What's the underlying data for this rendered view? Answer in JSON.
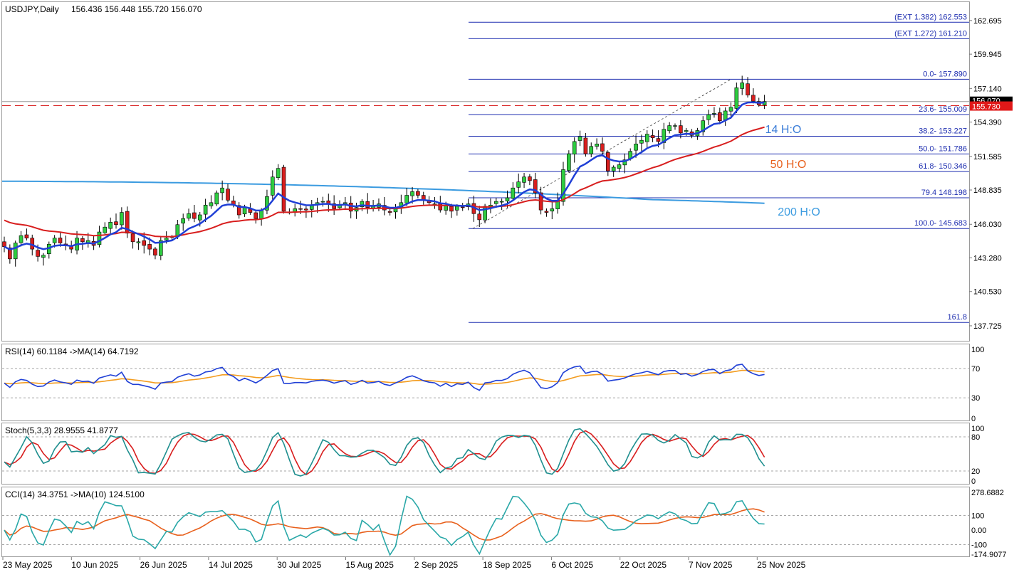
{
  "chart_data": [
    {
      "type": "candlestick",
      "header": {
        "symbol_tf": "USDJPY,Daily",
        "ohlc": "156.436 156.448 155.720 156.070"
      },
      "price_axis": {
        "ticks": [
          "162.695",
          "159.945",
          "157.140",
          "154.390",
          "151.585",
          "148.835",
          "146.030",
          "143.280",
          "140.530",
          "137.725"
        ],
        "ylim": [
          136.5,
          164.2
        ],
        "current_price": "156.070",
        "bid_price": "155.730"
      },
      "x_axis": {
        "labels": [
          "23 May 2025",
          "10 Jun 2025",
          "26 Jun 2025",
          "14 Jul 2025",
          "30 Jul 2025",
          "15 Aug 2025",
          "2 Sep 2025",
          "18 Sep 2025",
          "6 Oct 2025",
          "22 Oct 2025",
          "7 Nov 2025",
          "25 Nov 2025"
        ]
      },
      "fibonacci": [
        {
          "label": "(EXT 1.382)  162.553",
          "price": 162.553
        },
        {
          "label": "(EXT 1.272)  161.210",
          "price": 161.21
        },
        {
          "label": "0.0- 157.890",
          "price": 157.89
        },
        {
          "label": "23.6- 155.009",
          "price": 155.009
        },
        {
          "label": "38.2- 153.227",
          "price": 153.227
        },
        {
          "label": "50.0- 151.786",
          "price": 151.786
        },
        {
          "label": "61.8- 150.346",
          "price": 150.346
        },
        {
          "label": "79.4  148.198",
          "price": 148.198
        },
        {
          "label": "100.0- 145.683",
          "price": 145.683
        },
        {
          "label": "161.8",
          "price": 138.0
        }
      ],
      "ma_labels": [
        {
          "text": "14 H:O",
          "color": "#3b7dd8"
        },
        {
          "text": "50 H:O",
          "color": "#e8601c"
        },
        {
          "text": "200 H:O",
          "color": "#3b9be0"
        }
      ],
      "closes": [
        144.2,
        143.2,
        144.5,
        145.1,
        144.9,
        144.0,
        143.4,
        143.5,
        144.4,
        144.9,
        144.5,
        144.3,
        144.0,
        144.9,
        144.6,
        144.7,
        144.3,
        145.4,
        145.8,
        146.2,
        146.0,
        147.0,
        145.3,
        144.6,
        144.6,
        144.3,
        144.0,
        143.5,
        144.7,
        144.9,
        145.0,
        146.0,
        146.5,
        146.9,
        146.5,
        146.8,
        147.6,
        147.8,
        148.6,
        149.0,
        148.0,
        147.6,
        146.8,
        147.4,
        147.0,
        146.5,
        147.2,
        148.3,
        149.9,
        150.6,
        147.1,
        147.0,
        147.3,
        147.3,
        147.2,
        147.6,
        147.8,
        147.9,
        147.7,
        147.3,
        147.6,
        147.8,
        147.1,
        147.4,
        147.9,
        147.4,
        147.5,
        147.7,
        147.2,
        147.0,
        147.4,
        147.8,
        148.4,
        148.7,
        148.4,
        148.0,
        147.8,
        147.7,
        147.2,
        147.6,
        147.1,
        147.5,
        147.4,
        147.7,
        146.9,
        146.4,
        147.5,
        147.6,
        147.9,
        147.9,
        148.2,
        149.0,
        149.5,
        149.9,
        149.6,
        148.6,
        147.2,
        147.0,
        147.3,
        148.0,
        150.5,
        151.8,
        152.8,
        153.2,
        151.8,
        152.4,
        152.6,
        152.0,
        150.4,
        150.7,
        150.9,
        151.3,
        152.0,
        152.6,
        152.9,
        153.4,
        153.1,
        152.8,
        153.8,
        154.1,
        154.1,
        153.5,
        153.7,
        153.3,
        153.7,
        154.5,
        155.0,
        155.1,
        154.5,
        155.3,
        155.6,
        157.2,
        157.6,
        156.6,
        156.1,
        155.8,
        156.07
      ],
      "series": [
        {
          "name": "14",
          "color": "#1f3fd6"
        },
        {
          "name": "50",
          "color": "#d81e1e"
        },
        {
          "name": "200",
          "color": "#3b9be0"
        }
      ]
    },
    {
      "type": "line",
      "title": "RSI(14) 60.1184  ->MA(14) 64.7192",
      "ticks": [
        "100",
        "70",
        "30",
        "0"
      ],
      "ylim": [
        0,
        100
      ],
      "levels": [
        70,
        30
      ],
      "series": [
        {
          "name": "RSI(14)",
          "color": "#1f3fd6"
        },
        {
          "name": "MA(14)",
          "color": "#f39c1f"
        }
      ]
    },
    {
      "type": "line",
      "title": "Stoch(5,3,3) 28.9555 41.8777",
      "ticks": [
        "100",
        "80",
        "20",
        "0"
      ],
      "ylim": [
        0,
        100
      ],
      "levels": [
        80,
        20
      ],
      "series": [
        {
          "name": "%K",
          "color": "#1f8f8f"
        },
        {
          "name": "%D",
          "color": "#d81e1e"
        }
      ]
    },
    {
      "type": "line",
      "title": "CCI(14) 34.3751  ->MA(10) 124.5100",
      "ticks": [
        "278.6882",
        "100",
        "0.00",
        "-100",
        "-174.9077"
      ],
      "ylim": [
        -174.9077,
        278.6882
      ],
      "levels": [
        100,
        -100
      ],
      "series": [
        {
          "name": "CCI(14)",
          "color": "#2aa8a8"
        },
        {
          "name": "MA(10)",
          "color": "#e8601c"
        }
      ]
    }
  ]
}
